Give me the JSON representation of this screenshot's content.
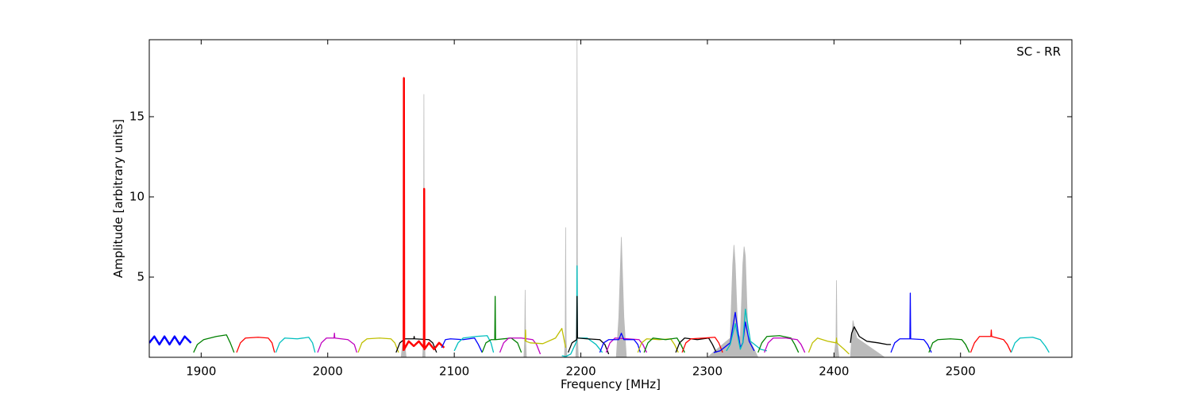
{
  "chart_data": {
    "type": "line",
    "xlabel": "Frequency [MHz]",
    "ylabel": "Amplitude [arbitrary units]",
    "annotation": "SC - RR",
    "xlim": [
      1859,
      2588
    ],
    "ylim": [
      0,
      19.8
    ],
    "xticks": [
      1900,
      2000,
      2100,
      2200,
      2300,
      2400,
      2500
    ],
    "yticks": [
      5,
      10,
      15
    ],
    "envelope": {
      "color": "#bbbbbb",
      "x": [
        2058,
        2059.5,
        2060,
        2060.5,
        2062,
        2075,
        2075.6,
        2076,
        2076.4,
        2077,
        2155,
        2155.6,
        2156,
        2156.4,
        2157,
        2187,
        2187.6,
        2188,
        2188.4,
        2189,
        2196,
        2196.6,
        2197,
        2197.4,
        2198,
        2228,
        2230,
        2232,
        2234,
        2236,
        2300,
        2318,
        2320,
        2321,
        2322,
        2324,
        2326,
        2328,
        2329,
        2330,
        2332,
        2334,
        2340,
        2400,
        2401.6,
        2402,
        2402.4,
        2404,
        2413,
        2415,
        2418,
        2440
      ],
      "values": [
        0,
        1.1,
        17.5,
        1.1,
        0,
        0,
        1.1,
        16.4,
        1.1,
        0,
        0,
        1.1,
        4.2,
        1.1,
        0,
        0,
        1.1,
        8.1,
        1.1,
        0,
        0,
        1.3,
        19.8,
        1.3,
        0,
        0,
        2.5,
        7.5,
        2.5,
        0,
        0,
        1.2,
        5.8,
        7.0,
        5.8,
        1.5,
        1.2,
        5.8,
        6.9,
        6.3,
        1.3,
        1.0,
        0,
        0,
        1.1,
        4.8,
        1.1,
        0,
        0,
        2.3,
        1.2,
        0
      ]
    },
    "series": [
      {
        "color": "#0000ff",
        "width": 2.5,
        "x": [
          1859,
          1863,
          1867,
          1871,
          1875,
          1879,
          1883,
          1887,
          1892
        ],
        "values": [
          0.9,
          1.3,
          0.8,
          1.3,
          0.8,
          1.3,
          0.8,
          1.3,
          0.9
        ]
      },
      {
        "color": "#008000",
        "width": 1.3,
        "x": [
          1894,
          1897,
          1902,
          1912,
          1920,
          1923,
          1926
        ],
        "values": [
          0.3,
          0.8,
          1.1,
          1.3,
          1.4,
          0.9,
          0.3
        ]
      },
      {
        "color": "#ff0000",
        "width": 1.3,
        "x": [
          1928,
          1931,
          1935,
          1945,
          1953,
          1956,
          1958
        ],
        "values": [
          0.3,
          0.9,
          1.2,
          1.25,
          1.2,
          0.9,
          0.3
        ]
      },
      {
        "color": "#00bfbf",
        "width": 1.3,
        "x": [
          1959,
          1962,
          1966,
          1976,
          1985,
          1988,
          1990
        ],
        "values": [
          0.3,
          0.9,
          1.2,
          1.15,
          1.25,
          0.9,
          0.3
        ]
      },
      {
        "color": "#bf00bf",
        "width": 1.3,
        "x": [
          1992,
          1995,
          1999,
          2005,
          2005.3,
          2005.6,
          2016,
          2021,
          2023
        ],
        "values": [
          0.3,
          0.9,
          1.2,
          1.2,
          1.5,
          1.2,
          1.1,
          0.8,
          0.3
        ]
      },
      {
        "color": "#bfbf00",
        "width": 1.3,
        "x": [
          2024,
          2027,
          2031,
          2041,
          2050,
          2053,
          2056
        ],
        "values": [
          0.3,
          0.9,
          1.15,
          1.2,
          1.15,
          0.9,
          0.3
        ]
      },
      {
        "color": "#000000",
        "width": 1.3,
        "x": [
          2054,
          2057,
          2061,
          2068,
          2068.3,
          2068.6,
          2080,
          2083,
          2086
        ],
        "values": [
          0.3,
          0.9,
          1.15,
          1.15,
          1.3,
          1.15,
          1.1,
          0.9,
          0.3
        ]
      },
      {
        "color": "#ff0000",
        "width": 2.5,
        "x": [
          2060,
          2060.2,
          2060.4,
          2064,
          2068,
          2072,
          2076,
          2076.2,
          2076.4,
          2080,
          2084,
          2088,
          2092
        ],
        "values": [
          0.4,
          17.4,
          0.5,
          1.0,
          0.7,
          1.0,
          0.6,
          10.5,
          0.5,
          0.9,
          0.5,
          0.9,
          0.6
        ]
      },
      {
        "color": "#0000ff",
        "width": 1.3,
        "x": [
          2090,
          2093,
          2097,
          2107,
          2116,
          2119,
          2122
        ],
        "values": [
          0.6,
          1.1,
          1.15,
          1.1,
          1.2,
          0.8,
          0.3
        ]
      },
      {
        "color": "#00bfbf",
        "width": 1.3,
        "x": [
          2100,
          2103,
          2107,
          2117,
          2126,
          2129,
          2131
        ],
        "values": [
          0.4,
          0.9,
          1.2,
          1.3,
          1.35,
          0.9,
          0.3
        ]
      },
      {
        "color": "#008000",
        "width": 1.3,
        "x": [
          2122,
          2125,
          2129,
          2132,
          2132.3,
          2132.6,
          2145,
          2150,
          2153
        ],
        "values": [
          0.3,
          0.9,
          1.1,
          1.1,
          3.8,
          1.1,
          1.2,
          0.9,
          0.3
        ]
      },
      {
        "color": "#bf00bf",
        "width": 1.3,
        "x": [
          2136,
          2139,
          2143,
          2153,
          2162,
          2165,
          2168
        ],
        "values": [
          0.3,
          0.9,
          1.2,
          1.2,
          1.1,
          0.8,
          0.2
        ]
      },
      {
        "color": "#bfbf00",
        "width": 1.3,
        "x": [
          2156,
          2156.3,
          2156.6,
          2160,
          2170,
          2180,
          2185,
          2188
        ],
        "values": [
          1.0,
          1.7,
          1.0,
          0.9,
          0.85,
          1.2,
          1.8,
          0.6
        ]
      },
      {
        "color": "#00bfbf",
        "width": 1.3,
        "x": [
          2185,
          2188,
          2192,
          2196.7,
          2197,
          2197.3,
          2205,
          2212,
          2217
        ],
        "values": [
          0.1,
          0.05,
          0.2,
          1.0,
          5.7,
          1.2,
          1.2,
          0.8,
          0.3
        ]
      },
      {
        "color": "#000000",
        "width": 1.3,
        "x": [
          2190,
          2193,
          2196.7,
          2197,
          2197.3,
          2205,
          2215,
          2219,
          2222
        ],
        "values": [
          0.3,
          0.9,
          1.1,
          3.8,
          1.2,
          1.15,
          1.1,
          0.8,
          0.2
        ]
      },
      {
        "color": "#bf00bf",
        "width": 1.3,
        "x": [
          2220,
          2223,
          2227,
          2237,
          2246,
          2249,
          2252
        ],
        "values": [
          0.3,
          0.9,
          1.2,
          1.15,
          1.1,
          0.8,
          0.3
        ]
      },
      {
        "color": "#0000ff",
        "width": 1.3,
        "x": [
          2215,
          2218,
          2222,
          2230,
          2232,
          2234,
          2242,
          2245,
          2247
        ],
        "values": [
          0.3,
          0.9,
          1.1,
          1.1,
          1.5,
          1.1,
          1.1,
          0.8,
          0.3
        ]
      },
      {
        "color": "#bfbf00",
        "width": 1.3,
        "x": [
          2245,
          2248,
          2252,
          2262,
          2271,
          2274,
          2277
        ],
        "values": [
          0.3,
          0.9,
          1.15,
          1.1,
          1.15,
          0.8,
          0.3
        ]
      },
      {
        "color": "#008000",
        "width": 1.3,
        "x": [
          2250,
          2253,
          2257,
          2267,
          2276,
          2279,
          2282
        ],
        "values": [
          0.3,
          0.9,
          1.2,
          1.1,
          1.2,
          0.8,
          0.3
        ]
      },
      {
        "color": "#000000",
        "width": 1.3,
        "x": [
          2275,
          2278,
          2282,
          2292,
          2301,
          2304,
          2307
        ],
        "values": [
          0.3,
          0.9,
          1.2,
          1.1,
          1.2,
          0.8,
          0.3
        ]
      },
      {
        "color": "#ff0000",
        "width": 1.3,
        "x": [
          2280,
          2283,
          2287,
          2297,
          2306,
          2309,
          2312
        ],
        "values": [
          0.3,
          0.9,
          1.15,
          1.2,
          1.25,
          0.9,
          0.3
        ]
      },
      {
        "color": "#0000ff",
        "width": 1.3,
        "x": [
          2305,
          2310,
          2318,
          2322,
          2326,
          2328,
          2330,
          2333,
          2337
        ],
        "values": [
          0.3,
          0.4,
          0.9,
          2.8,
          0.6,
          0.9,
          2.2,
          1.0,
          0.4
        ]
      },
      {
        "color": "#00bfbf",
        "width": 1.3,
        "x": [
          2315,
          2318,
          2322,
          2326,
          2328,
          2330,
          2334,
          2342,
          2347
        ],
        "values": [
          0.4,
          0.8,
          2.1,
          0.5,
          0.9,
          3.0,
          1.0,
          0.5,
          0.4
        ]
      },
      {
        "color": "#008000",
        "width": 1.3,
        "x": [
          2340,
          2343,
          2347,
          2357,
          2366,
          2369,
          2372
        ],
        "values": [
          0.3,
          0.9,
          1.3,
          1.35,
          1.2,
          0.8,
          0.3
        ]
      },
      {
        "color": "#bf00bf",
        "width": 1.3,
        "x": [
          2345,
          2348,
          2352,
          2362,
          2371,
          2374,
          2377
        ],
        "values": [
          0.3,
          0.9,
          1.2,
          1.2,
          1.1,
          0.8,
          0.3
        ]
      },
      {
        "color": "#bfbf00",
        "width": 1.3,
        "x": [
          2380,
          2383,
          2387,
          2395,
          2401.7,
          2402,
          2402.3,
          2408,
          2412
        ],
        "values": [
          0.3,
          0.9,
          1.2,
          1.0,
          0.9,
          1.2,
          0.9,
          0.5,
          0.2
        ]
      },
      {
        "color": "#000000",
        "width": 1.3,
        "x": [
          2413,
          2414,
          2416,
          2420,
          2426,
          2435,
          2442,
          2445
        ],
        "values": [
          0.9,
          1.5,
          1.9,
          1.3,
          1.0,
          0.9,
          0.8,
          0.8
        ]
      },
      {
        "color": "#0000ff",
        "width": 1.3,
        "x": [
          2445,
          2448,
          2452,
          2460,
          2460.3,
          2460.6,
          2471,
          2474,
          2477
        ],
        "values": [
          0.3,
          0.9,
          1.15,
          1.15,
          4.0,
          1.15,
          1.1,
          0.8,
          0.3
        ]
      },
      {
        "color": "#008000",
        "width": 1.3,
        "x": [
          2475,
          2478,
          2482,
          2492,
          2501,
          2504,
          2507
        ],
        "values": [
          0.3,
          0.9,
          1.1,
          1.15,
          1.1,
          0.8,
          0.3
        ]
      },
      {
        "color": "#ff0000",
        "width": 1.3,
        "x": [
          2508,
          2511,
          2515,
          2524,
          2524.3,
          2524.6,
          2534,
          2537,
          2540
        ],
        "values": [
          0.3,
          0.9,
          1.3,
          1.3,
          1.7,
          1.3,
          1.1,
          0.8,
          0.3
        ]
      },
      {
        "color": "#00bfbf",
        "width": 1.3,
        "x": [
          2540,
          2543,
          2547,
          2557,
          2563,
          2567,
          2570
        ],
        "values": [
          0.3,
          0.9,
          1.2,
          1.25,
          1.1,
          0.7,
          0.3
        ]
      }
    ]
  }
}
